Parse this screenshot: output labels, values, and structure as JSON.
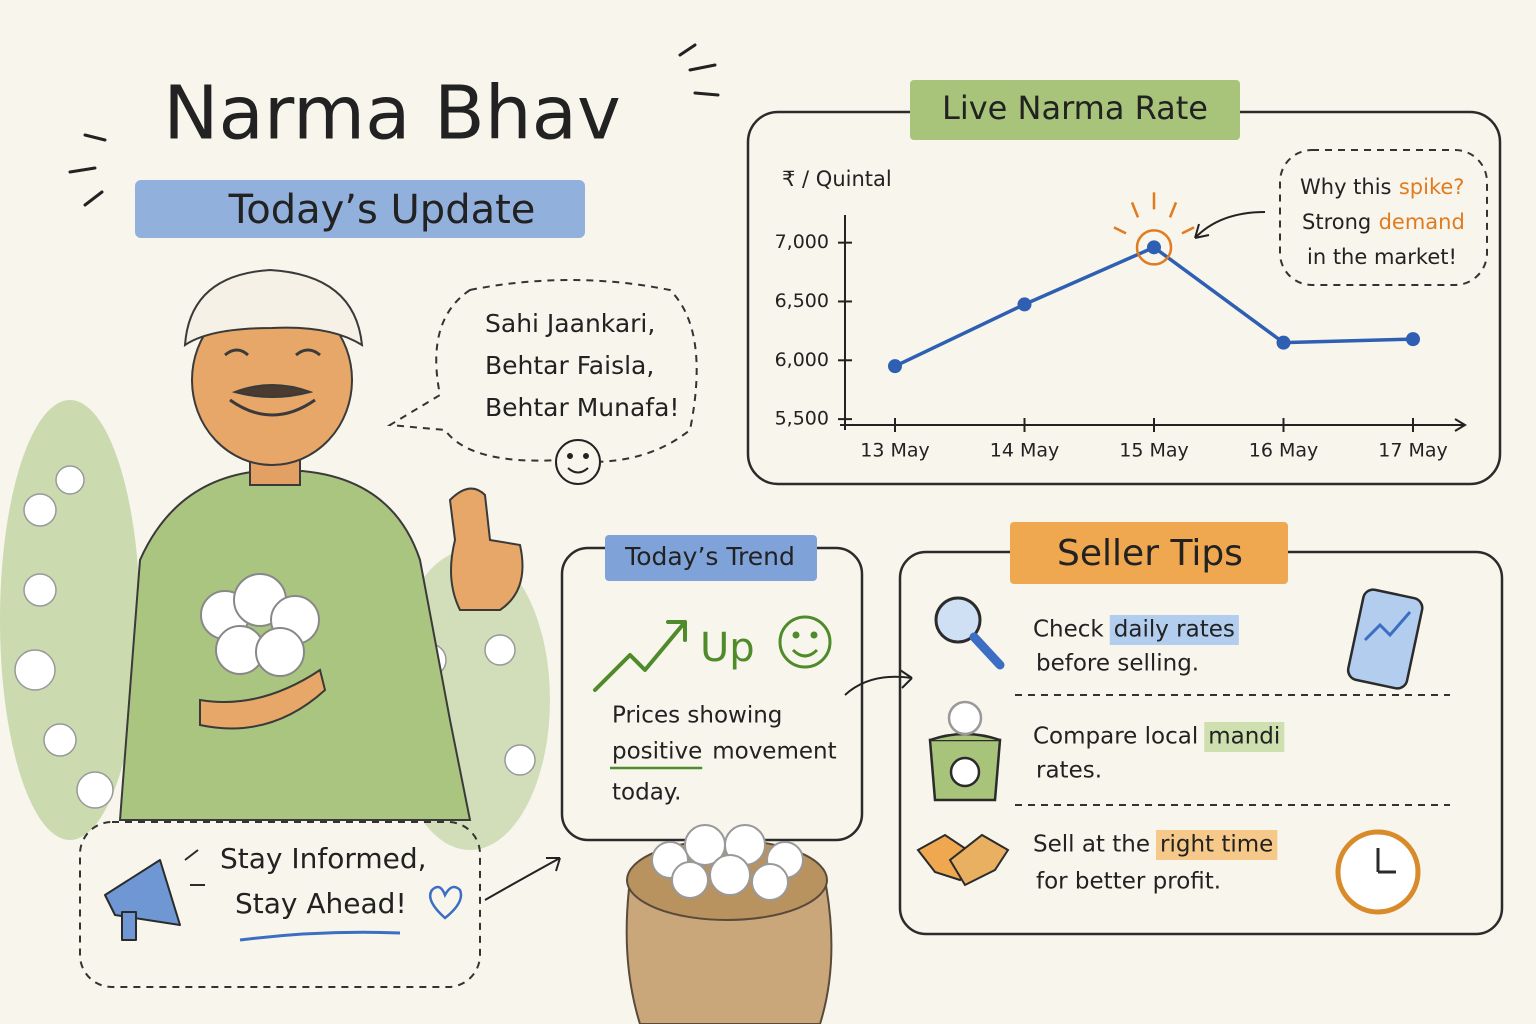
{
  "title": "Narma Bhav",
  "subtitle": "Today’s Update",
  "speech": [
    "Sahi Jaankari,",
    "Behtar Faisla,",
    "Behtar Munafa!"
  ],
  "chart_data": {
    "type": "line",
    "title": "Live Narma Rate",
    "y_label": "₹ / Quintal",
    "categories": [
      "13 May",
      "14 May",
      "15 May",
      "16 May",
      "17 May"
    ],
    "series": [
      {
        "color": "#2f5fb3",
        "values": [
          5950,
          6475,
          6960,
          6150,
          6180
        ]
      }
    ],
    "ylim": [
      5450,
      7150
    ],
    "yticks": [
      {
        "value": 5500,
        "label": "5,500"
      },
      {
        "value": 6000,
        "label": "6,000"
      },
      {
        "value": 6500,
        "label": "6,500"
      },
      {
        "value": 7000,
        "label": "7,000"
      }
    ],
    "annotation": {
      "line1": "Why this",
      "line1_highlight": "spike?",
      "line2": "Strong",
      "line2_highlight": "demand",
      "line3": "in the market!",
      "highlight_color": "#e07b20"
    }
  },
  "trend": {
    "title": "Today’s Trend",
    "direction": "Up",
    "line1": "Prices showing",
    "underlined": "positive",
    "line2_rest": "movement",
    "line3": "today."
  },
  "seller_tips": {
    "title": "Seller Tips",
    "tips": [
      {
        "before": "Check",
        "highlight": "daily rates",
        "after": "before selling.",
        "highlight_color": "#b3cdee"
      },
      {
        "before": "Compare local",
        "highlight": "mandi",
        "after": "rates.",
        "highlight_color": "#cfe0b0"
      },
      {
        "before": "Sell at the",
        "highlight": "right time",
        "after": "for better profit.",
        "highlight_color": "#f6c98a"
      }
    ]
  },
  "slogan": [
    "Stay Informed,",
    "Stay Ahead!"
  ]
}
